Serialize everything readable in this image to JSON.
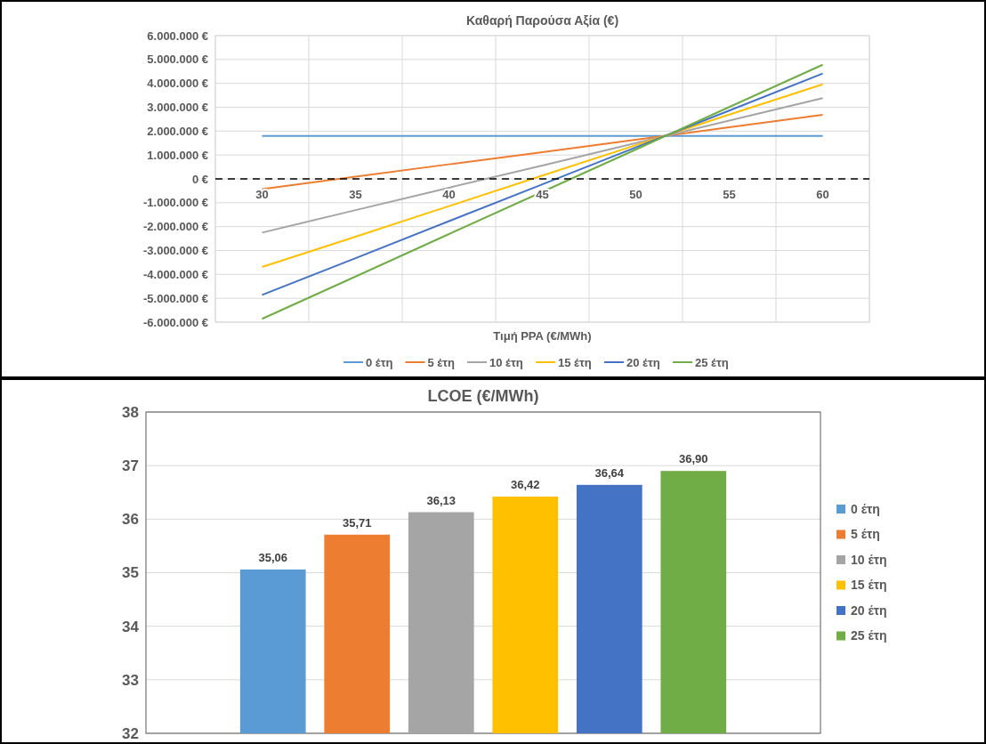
{
  "chart_data": [
    {
      "type": "line",
      "title": "Καθαρή Παρούσα Αξία (€)",
      "xlabel": "Τιμή PPA (€/MWh)",
      "categories": [
        "30",
        "35",
        "40",
        "45",
        "50",
        "55",
        "60"
      ],
      "series": [
        {
          "name": "0 έτη",
          "color": "#5b9bd5",
          "values": [
            1800000,
            1800000,
            1800000,
            1800000,
            1800000,
            1800000,
            1800000
          ]
        },
        {
          "name": "5 έτη",
          "color": "#ed7d31",
          "values": [
            -430000,
            90000,
            610000,
            1120000,
            1640000,
            2160000,
            2680000
          ]
        },
        {
          "name": "10 έτη",
          "color": "#a5a5a5",
          "values": [
            -2250000,
            -1310000,
            -370000,
            560000,
            1500000,
            2440000,
            3380000
          ]
        },
        {
          "name": "15 έτη",
          "color": "#ffc000",
          "values": [
            -3690000,
            -2420000,
            -1140000,
            140000,
            1410000,
            2690000,
            3960000
          ]
        },
        {
          "name": "20 έτη",
          "color": "#4472c4",
          "values": [
            -4860000,
            -3320000,
            -1770000,
            -230000,
            1320000,
            2860000,
            4410000
          ]
        },
        {
          "name": "25 έτη",
          "color": "#70ad47",
          "values": [
            -5860000,
            -4090000,
            -2310000,
            -540000,
            1230000,
            3010000,
            4780000
          ]
        }
      ],
      "ylim": [
        -6000000,
        6000000
      ],
      "yticks": [
        {
          "value": -6000000,
          "label": "-6.000.000 €"
        },
        {
          "value": -5000000,
          "label": "-5.000.000 €"
        },
        {
          "value": -4000000,
          "label": "-4.000.000 €"
        },
        {
          "value": -3000000,
          "label": "-3.000.000 €"
        },
        {
          "value": -2000000,
          "label": "-2.000.000 €"
        },
        {
          "value": -1000000,
          "label": "-1.000.000 €"
        },
        {
          "value": 0,
          "label": "0 €"
        },
        {
          "value": 1000000,
          "label": "1.000.000 €"
        },
        {
          "value": 2000000,
          "label": "2.000.000 €"
        },
        {
          "value": 3000000,
          "label": "3.000.000 €"
        },
        {
          "value": 4000000,
          "label": "4.000.000 €"
        },
        {
          "value": 5000000,
          "label": "5.000.000 €"
        },
        {
          "value": 6000000,
          "label": "6.000.000 €"
        }
      ],
      "ref_lines": [
        {
          "axis": "y",
          "value": 0,
          "color": "#000000",
          "line_style": "dashed"
        }
      ],
      "grid": true,
      "legend": "bottom"
    },
    {
      "type": "bar",
      "title": "LCOE (€/MWh)",
      "categories": [
        null
      ],
      "series": [
        {
          "name": "0 έτη",
          "color": "#5b9bd5",
          "values": [
            35.06
          ],
          "value_labels": [
            "35,06"
          ]
        },
        {
          "name": "5 έτη",
          "color": "#ed7d31",
          "values": [
            35.71
          ],
          "value_labels": [
            "35,71"
          ]
        },
        {
          "name": "10 έτη",
          "color": "#a5a5a5",
          "values": [
            36.13
          ],
          "value_labels": [
            "36,13"
          ]
        },
        {
          "name": "15 έτη",
          "color": "#ffc000",
          "values": [
            36.42
          ],
          "value_labels": [
            "36,42"
          ]
        },
        {
          "name": "20 έτη",
          "color": "#4472c4",
          "values": [
            36.64
          ],
          "value_labels": [
            "36,64"
          ]
        },
        {
          "name": "25 έτη",
          "color": "#70ad47",
          "values": [
            36.9
          ],
          "value_labels": [
            "36,90"
          ]
        }
      ],
      "ylim": [
        32,
        38
      ],
      "yticks": [
        32,
        33,
        34,
        35,
        36,
        37,
        38
      ],
      "grid": "y",
      "legend": "right"
    }
  ]
}
